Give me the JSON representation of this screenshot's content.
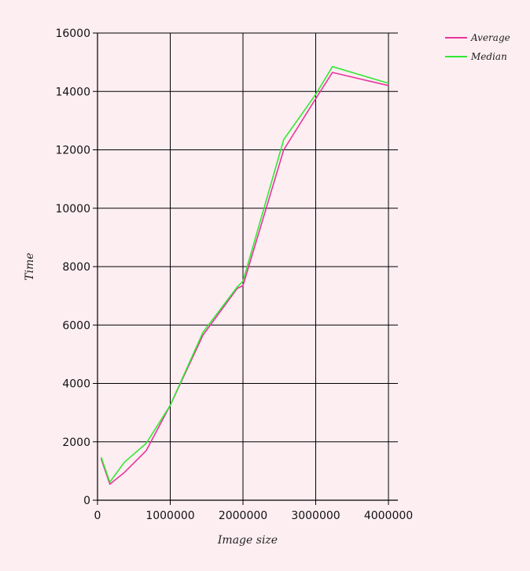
{
  "chart_data": {
    "type": "line",
    "title": "",
    "xlabel": "Image size",
    "ylabel": "Time",
    "xlim": [
      0,
      4100000
    ],
    "ylim": [
      0,
      16000
    ],
    "x_ticks": [
      0,
      1000000,
      2000000,
      3000000,
      4000000
    ],
    "x_tick_labels": [
      "0",
      "1000000",
      "2000000",
      "3000000",
      "4000000"
    ],
    "y_ticks": [
      0,
      2000,
      4000,
      6000,
      8000,
      10000,
      12000,
      14000,
      16000
    ],
    "y_tick_labels": [
      "0",
      "2000",
      "4000",
      "6000",
      "8000",
      "10000",
      "12000",
      "14000",
      "16000"
    ],
    "grid": true,
    "legend_position": "top-right",
    "series": [
      {
        "name": "Average",
        "color": "#e8359b",
        "points": [
          [
            50000,
            1420
          ],
          [
            170000,
            550
          ],
          [
            370000,
            950
          ],
          [
            670000,
            1700
          ],
          [
            1000000,
            3250
          ],
          [
            1450000,
            5650
          ],
          [
            1920000,
            7250
          ],
          [
            2000000,
            7350
          ],
          [
            2560000,
            12000
          ],
          [
            3000000,
            13750
          ],
          [
            3230000,
            14650
          ],
          [
            4000000,
            14200
          ]
        ]
      },
      {
        "name": "Median",
        "color": "#33e833",
        "points": [
          [
            50000,
            1480
          ],
          [
            170000,
            620
          ],
          [
            370000,
            1300
          ],
          [
            670000,
            1950
          ],
          [
            1000000,
            3250
          ],
          [
            1450000,
            5750
          ],
          [
            1920000,
            7300
          ],
          [
            2000000,
            7500
          ],
          [
            2560000,
            12350
          ],
          [
            3000000,
            13900
          ],
          [
            3230000,
            14850
          ],
          [
            4000000,
            14280
          ]
        ]
      }
    ]
  }
}
